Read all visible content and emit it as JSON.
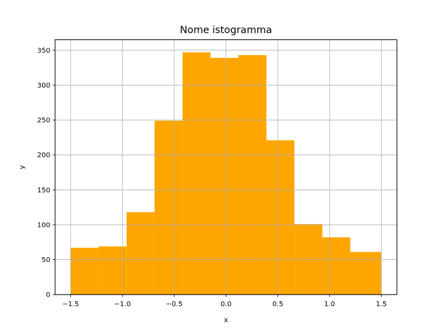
{
  "chart_data": {
    "type": "bar",
    "title": "Nome istogramma",
    "xlabel": "x",
    "ylabel": "y",
    "xlim": [
      -1.65,
      1.65
    ],
    "ylim": [
      0,
      365
    ],
    "xticks": [
      -1.5,
      -1.0,
      -0.5,
      0.0,
      0.5,
      1.0,
      1.5
    ],
    "xtick_labels": [
      "−1.5",
      "−1.0",
      "−0.5",
      "0.0",
      "0.5",
      "1.0",
      "1.5"
    ],
    "yticks": [
      0,
      50,
      100,
      150,
      200,
      250,
      300,
      350
    ],
    "ytick_labels": [
      "0",
      "50",
      "100",
      "150",
      "200",
      "250",
      "300",
      "350"
    ],
    "bin_edges": [
      -1.5,
      -1.23,
      -0.96,
      -0.69,
      -0.42,
      -0.15,
      0.12,
      0.39,
      0.66,
      0.93,
      1.2,
      1.5
    ],
    "values": [
      67,
      69,
      118,
      249,
      347,
      339,
      343,
      221,
      101,
      82,
      61
    ],
    "bar_color": "#ffa500",
    "grid": true,
    "grid_color": "#b0b0b0"
  }
}
